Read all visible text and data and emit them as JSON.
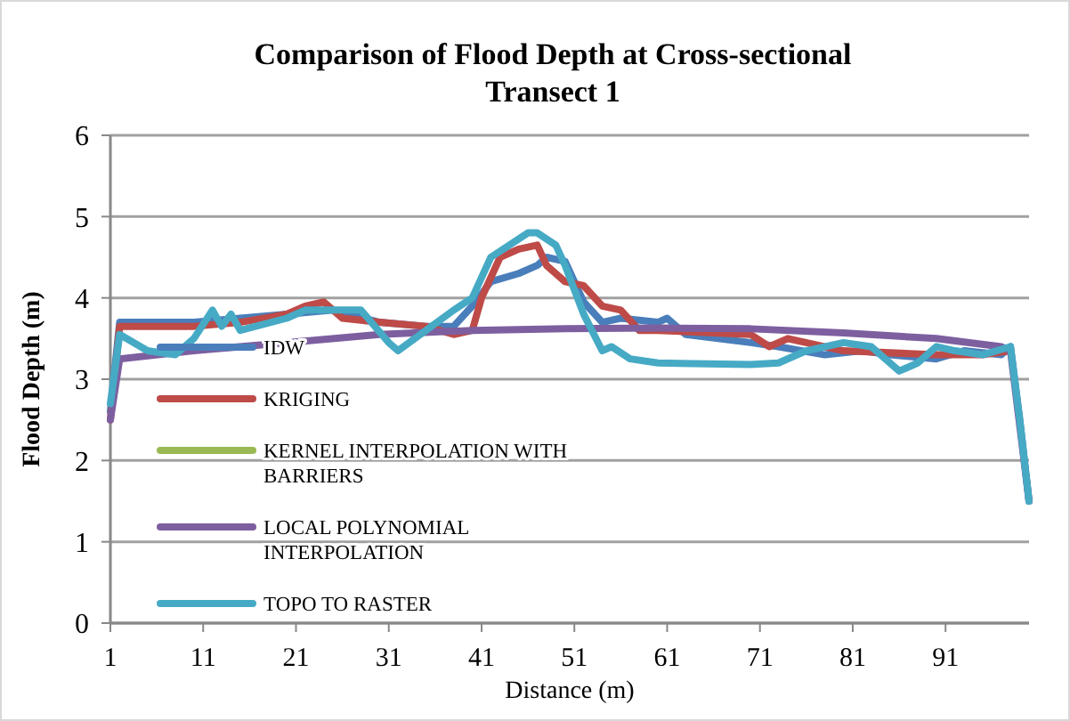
{
  "chart_data": {
    "type": "line",
    "title": "Comparison of Flood Depth at Cross-sectional Transect 1",
    "xlabel": "Distance (m)",
    "ylabel": "Flood Depth (m)",
    "xlim": [
      1,
      100
    ],
    "xticks": [
      1,
      11,
      21,
      31,
      41,
      51,
      61,
      71,
      81,
      91
    ],
    "ylim": [
      0,
      6
    ],
    "yticks": [
      0,
      1,
      2,
      3,
      4,
      5,
      6
    ],
    "grid": "y",
    "legend": "bottom left",
    "marker": "none",
    "line_style": "solid",
    "series": [
      {
        "name": "IDW",
        "color": "#4a7ebb",
        "x": [
          1,
          2,
          5,
          10,
          15,
          20,
          25,
          30,
          35,
          38,
          40,
          42,
          45,
          47,
          48,
          50,
          52,
          54,
          56,
          60,
          61,
          63,
          70,
          73,
          78,
          82,
          85,
          90,
          93,
          97,
          98,
          99,
          100
        ],
        "values": [
          2.6,
          3.7,
          3.7,
          3.7,
          3.75,
          3.8,
          3.85,
          3.7,
          3.65,
          3.65,
          3.9,
          4.2,
          4.3,
          4.4,
          4.5,
          4.45,
          3.95,
          3.7,
          3.75,
          3.7,
          3.75,
          3.55,
          3.45,
          3.4,
          3.3,
          3.35,
          3.3,
          3.25,
          3.35,
          3.3,
          3.4,
          2.5,
          1.5
        ]
      },
      {
        "name": "KRIGING",
        "color": "#be4b48",
        "x": [
          1,
          2,
          10,
          15,
          20,
          22,
          24,
          26,
          30,
          35,
          38,
          40,
          41,
          43,
          45,
          47,
          48,
          50,
          52,
          54,
          56,
          58,
          60,
          70,
          72,
          74,
          80,
          90,
          95,
          98
        ],
        "values": [
          2.5,
          3.65,
          3.65,
          3.7,
          3.8,
          3.9,
          3.95,
          3.75,
          3.7,
          3.65,
          3.55,
          3.6,
          4.0,
          4.5,
          4.6,
          4.65,
          4.4,
          4.2,
          4.15,
          3.9,
          3.85,
          3.6,
          3.6,
          3.55,
          3.4,
          3.5,
          3.35,
          3.3,
          3.3,
          3.35
        ]
      },
      {
        "name": "KERNEL INTERPOLATION WITH BARRIERS",
        "color": "#98b954"
      },
      {
        "name": "LOCAL POLYNOMIAL INTERPOLATION",
        "color": "#7d5fa0",
        "x": [
          1,
          2,
          10,
          20,
          30,
          40,
          50,
          60,
          70,
          80,
          90,
          97,
          98,
          100
        ],
        "values": [
          2.5,
          3.25,
          3.35,
          3.45,
          3.55,
          3.6,
          3.62,
          3.63,
          3.62,
          3.57,
          3.5,
          3.4,
          3.35,
          1.5
        ]
      },
      {
        "name": "TOPO TO RASTER",
        "color": "#46aac5",
        "x": [
          1,
          2,
          5,
          8,
          10,
          12,
          13,
          14,
          15,
          20,
          22,
          28,
          31,
          32,
          35,
          38,
          40,
          42,
          44,
          46,
          47,
          49,
          50,
          52,
          54,
          55,
          57,
          60,
          70,
          73,
          76,
          80,
          83,
          86,
          88,
          90,
          92,
          95,
          98,
          99,
          100
        ],
        "values": [
          2.7,
          3.55,
          3.35,
          3.3,
          3.5,
          3.85,
          3.65,
          3.8,
          3.6,
          3.75,
          3.85,
          3.85,
          3.45,
          3.35,
          3.6,
          3.85,
          4.0,
          4.5,
          4.65,
          4.8,
          4.8,
          4.65,
          4.4,
          3.8,
          3.35,
          3.4,
          3.25,
          3.2,
          3.18,
          3.2,
          3.35,
          3.45,
          3.4,
          3.1,
          3.2,
          3.4,
          3.35,
          3.3,
          3.4,
          2.5,
          1.5
        ]
      }
    ]
  }
}
